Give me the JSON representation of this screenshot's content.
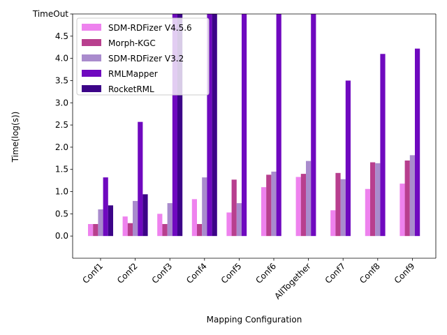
{
  "chart_data": {
    "type": "bar",
    "title": "",
    "xlabel": "Mapping Configuration",
    "ylabel": "Time(log(s))",
    "categories": [
      "Conf1",
      "Conf2",
      "Conf3",
      "Conf4",
      "Conf5",
      "Conf6",
      "AllTogether",
      "Conf7",
      "Conf8",
      "Conf9"
    ],
    "ylim": [
      -0.5,
      5.0
    ],
    "yticks": [
      0.0,
      0.5,
      1.0,
      1.5,
      2.0,
      2.5,
      3.0,
      3.5,
      4.0,
      4.5,
      5.0
    ],
    "ytick_labels": [
      "0.0",
      "0.5",
      "1.0",
      "1.5",
      "2.0",
      "2.5",
      "3.0",
      "3.5",
      "4.0",
      "4.5",
      "TimeOut"
    ],
    "legend_position": "top-left",
    "grid": false,
    "series": [
      {
        "name": "SDM-RDFizer V4.5.6",
        "color": "#ee82ee",
        "values": [
          0.27,
          0.44,
          0.5,
          0.83,
          0.53,
          1.1,
          1.33,
          0.58,
          1.06,
          1.18
        ]
      },
      {
        "name": "Morph-KGC",
        "color": "#b83f8e",
        "values": [
          0.27,
          0.29,
          0.27,
          0.27,
          1.27,
          1.38,
          1.4,
          1.42,
          1.66,
          1.7
        ]
      },
      {
        "name": "SDM-RDFizer V3.2",
        "color": "#a98bcd",
        "values": [
          0.6,
          0.79,
          0.74,
          1.32,
          0.74,
          1.45,
          1.69,
          1.28,
          1.64,
          1.82
        ]
      },
      {
        "name": "RMLMapper",
        "color": "#6f09bf",
        "values": [
          1.32,
          2.57,
          5.0,
          5.0,
          5.0,
          5.0,
          5.0,
          3.5,
          4.1,
          4.22
        ]
      },
      {
        "name": "RocketRML",
        "color": "#3c0488",
        "values": [
          0.69,
          0.94,
          5.0,
          5.0,
          null,
          null,
          null,
          null,
          null,
          null
        ]
      }
    ]
  }
}
